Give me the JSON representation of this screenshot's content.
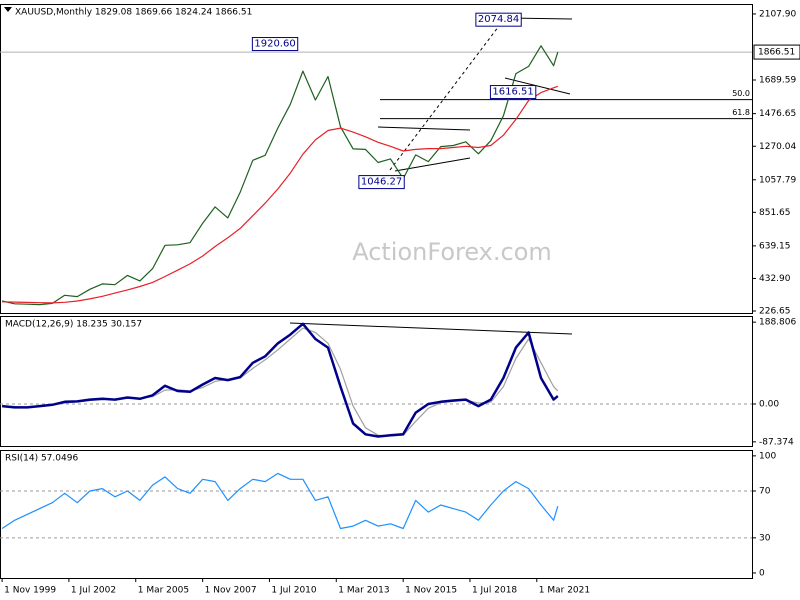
{
  "chart_data": [
    {
      "type": "line",
      "title": "XAUUSD,Monthly  1829.08 1869.66 1824.24 1866.51",
      "watermark": "ActionForex.com",
      "x": [
        "1999-11-01",
        "2000-05-01",
        "2000-11-01",
        "2001-05-01",
        "2001-11-01",
        "2002-05-01",
        "2002-11-01",
        "2003-05-01",
        "2003-11-01",
        "2004-05-01",
        "2004-11-01",
        "2005-05-01",
        "2005-11-01",
        "2006-05-01",
        "2006-11-01",
        "2007-05-01",
        "2007-11-01",
        "2008-05-01",
        "2008-11-01",
        "2009-05-01",
        "2009-11-01",
        "2010-05-01",
        "2010-11-01",
        "2011-05-01",
        "2011-11-01",
        "2012-05-01",
        "2012-11-01",
        "2013-05-01",
        "2013-11-01",
        "2014-05-01",
        "2014-11-01",
        "2015-05-01",
        "2015-11-01",
        "2016-05-01",
        "2016-11-01",
        "2017-05-01",
        "2017-11-01",
        "2018-05-01",
        "2018-11-01",
        "2019-05-01",
        "2019-11-01",
        "2020-05-01",
        "2020-11-01",
        "2021-05-01",
        "2021-11-01",
        "2022-01-01"
      ],
      "xlim": [
        "1999-10-01",
        "2029-10-01"
      ],
      "series": [
        {
          "color": "#1f5f1f",
          "values": [
            290,
            272,
            270,
            267,
            275,
            326,
            318,
            364,
            398,
            393,
            452,
            417,
            495,
            643,
            646,
            659,
            783,
            886,
            816,
            979,
            1181,
            1213,
            1386,
            1536,
            1746,
            1563,
            1712,
            1393,
            1253,
            1250,
            1167,
            1190,
            1065,
            1215,
            1173,
            1268,
            1275,
            1298,
            1222,
            1305,
            1463,
            1730,
            1776,
            1906,
            1780,
            1866.51
          ]
        },
        {
          "color": "#e8202a",
          "values": [
            285,
            283,
            281,
            279,
            278,
            282,
            290,
            303,
            320,
            340,
            360,
            382,
            408,
            445,
            485,
            525,
            575,
            635,
            690,
            750,
            830,
            910,
            1000,
            1100,
            1220,
            1310,
            1370,
            1385,
            1360,
            1330,
            1295,
            1270,
            1240,
            1250,
            1255,
            1255,
            1262,
            1270,
            1262,
            1275,
            1340,
            1440,
            1560,
            1610,
            1640,
            1650
          ]
        }
      ],
      "ylim": [
        214,
        2171
      ],
      "yticks": [
        226.65,
        {
          "value": 432.9,
          "label": "432.90"
        },
        639.15,
        851.65,
        1057.79,
        1270.04,
        1476.65,
        1689.59,
        {
          "value": 2107.9,
          "label": "2107.90"
        }
      ],
      "last_price": 1866.51,
      "annotations": [
        {
          "x": "2011-09-01",
          "value": 1920.6,
          "label": "1920.60"
        },
        {
          "x": "2020-08-01",
          "value": 2074.84,
          "label": "2074.84"
        },
        {
          "x": "2021-03-01",
          "value": 1616.51,
          "label": "1616.51"
        },
        {
          "x": "2015-12-01",
          "value": 1046.27,
          "label": "1046.27"
        }
      ],
      "fib_levels": [
        {
          "name": "50.0",
          "price": 1565
        },
        {
          "name": "61.8",
          "price": 1445
        }
      ]
    },
    {
      "type": "line",
      "title": "MACD(12,26,9) 18.235 30.157",
      "x": [
        "1999-11-01",
        "2000-05-01",
        "2000-11-01",
        "2001-05-01",
        "2001-11-01",
        "2002-05-01",
        "2002-11-01",
        "2003-05-01",
        "2003-11-01",
        "2004-05-01",
        "2004-11-01",
        "2005-05-01",
        "2005-11-01",
        "2006-05-01",
        "2006-11-01",
        "2007-05-01",
        "2007-11-01",
        "2008-05-01",
        "2008-11-01",
        "2009-05-01",
        "2009-11-01",
        "2010-05-01",
        "2010-11-01",
        "2011-05-01",
        "2011-11-01",
        "2012-05-01",
        "2012-11-01",
        "2013-05-01",
        "2013-11-01",
        "2014-05-01",
        "2014-11-01",
        "2015-05-01",
        "2015-11-01",
        "2016-05-01",
        "2016-11-01",
        "2017-05-01",
        "2017-11-01",
        "2018-05-01",
        "2018-11-01",
        "2019-05-01",
        "2019-11-01",
        "2020-05-01",
        "2020-11-01",
        "2021-05-01",
        "2021-11-01",
        "2022-01-01"
      ],
      "xlim": [
        "1999-10-01",
        "2029-10-01"
      ],
      "series": [
        {
          "color": "#a0a0a0",
          "values": [
            -4,
            -6,
            -8,
            -6,
            -3,
            2,
            5,
            8,
            10,
            11,
            13,
            13,
            17,
            32,
            33,
            30,
            38,
            52,
            57,
            60,
            82,
            102,
            125,
            150,
            175,
            165,
            140,
            80,
            -5,
            -55,
            -72,
            -74,
            -72,
            -40,
            -10,
            3,
            6,
            9,
            2,
            4,
            40,
            105,
            150,
            95,
            40,
            30.157
          ]
        },
        {
          "color": "#00008b",
          "values": [
            -5,
            -8,
            -8,
            -5,
            -2,
            5,
            6,
            10,
            12,
            10,
            15,
            12,
            20,
            42,
            30,
            28,
            45,
            60,
            55,
            62,
            95,
            110,
            140,
            160,
            185,
            150,
            130,
            40,
            -45,
            -70,
            -75,
            -72,
            -70,
            -20,
            0,
            5,
            8,
            10,
            -5,
            10,
            60,
            130,
            165,
            60,
            10,
            18.235
          ]
        }
      ],
      "ylim": [
        -97,
        203
      ],
      "yticks": [
        188.806,
        {
          "value": 0,
          "label": "0.00"
        },
        -87.374
      ],
      "level_lines": [
        0
      ]
    },
    {
      "type": "line",
      "title": "RSI(14) 57.0496",
      "x": [
        "1999-11-01",
        "2000-05-01",
        "2000-11-01",
        "2001-05-01",
        "2001-11-01",
        "2002-05-01",
        "2002-11-01",
        "2003-05-01",
        "2003-11-01",
        "2004-05-01",
        "2004-11-01",
        "2005-05-01",
        "2005-11-01",
        "2006-05-01",
        "2006-11-01",
        "2007-05-01",
        "2007-11-01",
        "2008-05-01",
        "2008-11-01",
        "2009-05-01",
        "2009-11-01",
        "2010-05-01",
        "2010-11-01",
        "2011-05-01",
        "2011-11-01",
        "2012-05-01",
        "2012-11-01",
        "2013-05-01",
        "2013-11-01",
        "2014-05-01",
        "2014-11-01",
        "2015-05-01",
        "2015-11-01",
        "2016-05-01",
        "2016-11-01",
        "2017-05-01",
        "2017-11-01",
        "2018-05-01",
        "2018-11-01",
        "2019-05-01",
        "2019-11-01",
        "2020-05-01",
        "2020-11-01",
        "2021-05-01",
        "2021-11-01",
        "2022-01-01"
      ],
      "xlim": [
        "1999-10-01",
        "2029-10-01"
      ],
      "series": [
        {
          "color": "#1e90ff",
          "values": [
            38,
            45,
            50,
            55,
            60,
            68,
            60,
            70,
            72,
            65,
            70,
            62,
            75,
            82,
            72,
            68,
            80,
            78,
            62,
            72,
            80,
            78,
            85,
            80,
            80,
            62,
            65,
            38,
            40,
            45,
            40,
            42,
            38,
            62,
            52,
            58,
            55,
            52,
            45,
            58,
            70,
            78,
            72,
            58,
            45,
            57.0496
          ]
        }
      ],
      "ylim": [
        -4.3,
        105
      ],
      "yticks": [
        0,
        30,
        70,
        100
      ],
      "level_lines": [
        30,
        70
      ],
      "xticks": [
        {
          "value": "1999-11-01",
          "label": "1 Nov 1999"
        },
        {
          "value": "2002-07-01",
          "label": "1 Jul 2002"
        },
        {
          "value": "2005-03-01",
          "label": "1 Mar 2005"
        },
        {
          "value": "2007-11-01",
          "label": "1 Nov 2007"
        },
        {
          "value": "2010-07-01",
          "label": "1 Jul 2010"
        },
        {
          "value": "2013-03-01",
          "label": "1 Mar 2013"
        },
        {
          "value": "2015-11-01",
          "label": "1 Nov 2015"
        },
        {
          "value": "2018-07-01",
          "label": "1 Jul 2018"
        },
        {
          "value": "2021-03-01",
          "label": "1 Mar 2021"
        }
      ]
    }
  ]
}
